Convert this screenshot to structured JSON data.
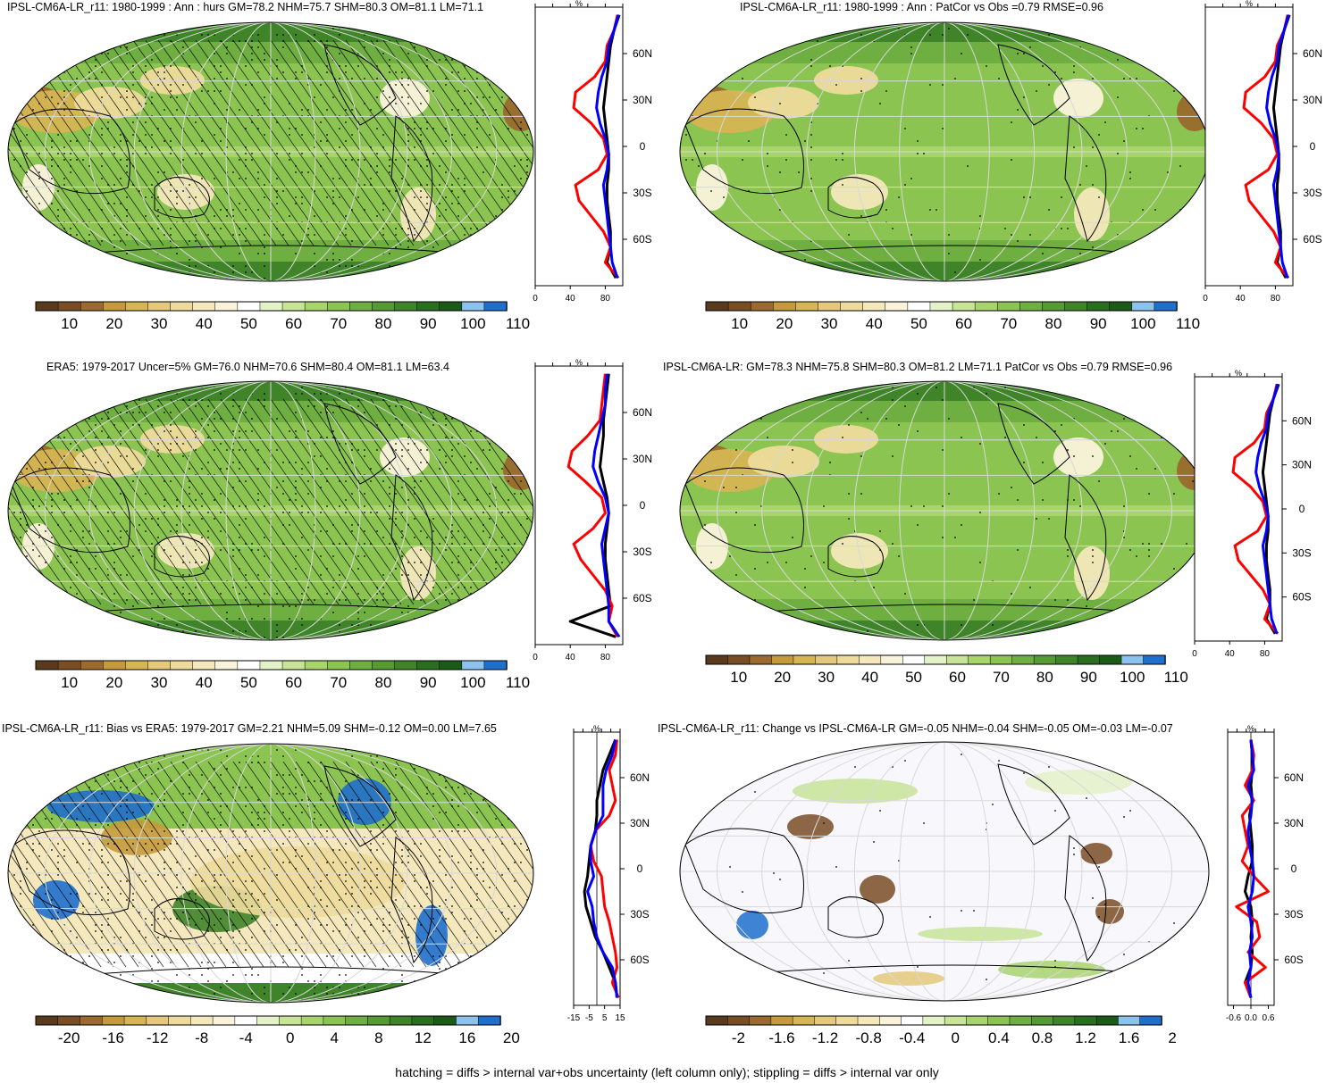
{
  "footer": "hatching = diffs > internal var+obs uncertainty (left column only); stippling = diffs > internal var only",
  "colors": {
    "brown_to_green": [
      "#5a3a1c",
      "#7a4e24",
      "#9a6a2e",
      "#c49a3c",
      "#d6b554",
      "#e4c97a",
      "#eedb9c",
      "#f4e8bc",
      "#faf3dc",
      "#ffffff",
      "#e4f2c8",
      "#c8e496",
      "#a8d46c",
      "#8cc452",
      "#6fae40",
      "#569a34",
      "#3f8428",
      "#2a6e20",
      "#1c5a18",
      "#8cc2ee",
      "#1f6fcc"
    ],
    "zonal_model": "#000000",
    "zonal_land": "#ff0000",
    "zonal_ocean": "#0000ff",
    "graticule": "#d8d8d8",
    "coast": "#000000"
  },
  "charts": [
    {
      "id": "p1",
      "title": "IPSL-CM6A-LR_r11: 1980-1999 : Ann : hurs GM=78.2 NHM=75.7 SHM=80.3 OM=81.1 LM=71.1",
      "kind": "abs",
      "hatching": true,
      "zonal_unit": "%",
      "zonal_xticks": [
        "0",
        "40",
        "80"
      ],
      "zonal_xlim": [
        0,
        100
      ],
      "lat_ticks": [
        "60N",
        "30N",
        "0",
        "30S",
        "60S"
      ],
      "colorbar_labels": [
        "10",
        "20",
        "30",
        "40",
        "50",
        "60",
        "70",
        "80",
        "90",
        "100",
        "110"
      ]
    },
    {
      "id": "p2",
      "title": "IPSL-CM6A-LR_r11: 1980-1999 : Ann : PatCor vs Obs =0.79 RMSE=0.96",
      "kind": "abs",
      "hatching": false,
      "zonal_unit": "%",
      "zonal_xticks": [
        "0",
        "40",
        "80"
      ],
      "zonal_xlim": [
        0,
        100
      ],
      "lat_ticks": [
        "60N",
        "30N",
        "0",
        "30S",
        "60S"
      ],
      "colorbar_labels": [
        "10",
        "20",
        "30",
        "40",
        "50",
        "60",
        "70",
        "80",
        "90",
        "100",
        "110"
      ]
    },
    {
      "id": "p3",
      "title": "ERA5: 1979-2017 Uncer=5% GM=76.0 NHM=70.6 SHM=80.4 OM=81.1 LM=63.4",
      "kind": "abs",
      "hatching": true,
      "zonal_unit": "%",
      "zonal_xticks": [
        "0",
        "40",
        "80"
      ],
      "zonal_xlim": [
        0,
        100
      ],
      "lat_ticks": [
        "60N",
        "30N",
        "0",
        "30S",
        "60S"
      ],
      "colorbar_labels": [
        "10",
        "20",
        "30",
        "40",
        "50",
        "60",
        "70",
        "80",
        "90",
        "100",
        "110"
      ]
    },
    {
      "id": "p4",
      "title": "IPSL-CM6A-LR: GM=78.3 NHM=75.8 SHM=80.3 OM=81.2 LM=71.1 PatCor vs Obs =0.79 RMSE=0.96",
      "kind": "abs",
      "hatching": false,
      "zonal_unit": "%",
      "zonal_xticks": [
        "0",
        "40",
        "80"
      ],
      "zonal_xlim": [
        0,
        100
      ],
      "lat_ticks": [
        "60N",
        "30N",
        "0",
        "30S",
        "60S"
      ],
      "colorbar_labels": [
        "10",
        "20",
        "30",
        "40",
        "50",
        "60",
        "70",
        "80",
        "90",
        "100",
        "110"
      ]
    },
    {
      "id": "p5",
      "title": "IPSL-CM6A-LR_r11: Bias vs ERA5: 1979-2017 GM=2.21 NHM=5.09 SHM=-0.12 OM=0.00 LM=7.65",
      "kind": "bias",
      "hatching": true,
      "zonal_unit": "%",
      "zonal_xticks": [
        "-15",
        "-5",
        "5",
        "15"
      ],
      "zonal_xlim": [
        -15,
        15
      ],
      "lat_ticks": [
        "60N",
        "30N",
        "0",
        "30S",
        "60S"
      ],
      "colorbar_labels": [
        "-20",
        "-16",
        "-12",
        "-8",
        "-4",
        "0",
        "4",
        "8",
        "12",
        "16",
        "20"
      ]
    },
    {
      "id": "p6",
      "title": "IPSL-CM6A-LR_r11: Change vs IPSL-CM6A-LR GM=-0.05 NHM=-0.04 SHM=-0.05 OM=-0.03 LM=-0.07",
      "kind": "change",
      "hatching": false,
      "zonal_unit": "%",
      "zonal_xticks": [
        "-0.6",
        "0.0",
        "0.6"
      ],
      "zonal_xlim": [
        -0.8,
        0.8
      ],
      "lat_ticks": [
        "60N",
        "30N",
        "0",
        "30S",
        "60S"
      ],
      "colorbar_labels": [
        "-2",
        "-1.6",
        "-1.2",
        "-0.8",
        "-0.4",
        "0",
        "0.4",
        "0.8",
        "1.2",
        "1.6",
        "2"
      ]
    }
  ],
  "chart_data": [
    {
      "type": "line",
      "panel": "p1",
      "y_lat": [
        85,
        75,
        65,
        55,
        45,
        35,
        25,
        15,
        5,
        -5,
        -15,
        -25,
        -35,
        -45,
        -55,
        -65,
        -75,
        -85
      ],
      "series": [
        {
          "values": [
            95,
            90,
            84,
            82,
            76,
            72,
            70,
            74,
            80,
            84,
            82,
            78,
            80,
            82,
            84,
            86,
            88,
            94
          ]
        },
        {
          "values": [
            94,
            90,
            82,
            80,
            68,
            46,
            44,
            64,
            78,
            82,
            72,
            46,
            50,
            64,
            78,
            86,
            80,
            95
          ]
        },
        {
          "values": [
            96,
            90,
            86,
            84,
            82,
            80,
            78,
            80,
            82,
            84,
            84,
            82,
            82,
            84,
            86,
            86,
            82,
            92
          ]
        }
      ]
    },
    {
      "type": "line",
      "panel": "p2",
      "y_lat": [
        85,
        75,
        65,
        55,
        45,
        35,
        25,
        15,
        5,
        -5,
        -15,
        -25,
        -35,
        -45,
        -55,
        -65,
        -75,
        -85
      ],
      "series": [
        {
          "values": [
            95,
            90,
            84,
            82,
            76,
            72,
            70,
            74,
            80,
            84,
            82,
            78,
            80,
            82,
            84,
            86,
            88,
            94
          ]
        },
        {
          "values": [
            94,
            90,
            82,
            80,
            68,
            46,
            44,
            64,
            78,
            82,
            72,
            46,
            50,
            64,
            78,
            86,
            80,
            95
          ]
        },
        {
          "values": [
            96,
            90,
            86,
            84,
            82,
            80,
            78,
            80,
            82,
            84,
            84,
            82,
            82,
            84,
            86,
            86,
            82,
            92
          ]
        }
      ]
    },
    {
      "type": "line",
      "panel": "p3",
      "y_lat": [
        85,
        75,
        65,
        55,
        45,
        35,
        25,
        15,
        5,
        -5,
        -15,
        -25,
        -35,
        -45,
        -55,
        -65,
        -75,
        -85
      ],
      "series": [
        {
          "values": [
            82,
            80,
            80,
            76,
            72,
            68,
            66,
            72,
            80,
            84,
            80,
            76,
            78,
            80,
            82,
            84,
            84,
            96
          ]
        },
        {
          "values": [
            80,
            78,
            76,
            74,
            60,
            42,
            38,
            58,
            76,
            80,
            66,
            44,
            52,
            66,
            80,
            88,
            84,
            94
          ]
        },
        {
          "values": [
            84,
            82,
            80,
            78,
            78,
            76,
            74,
            78,
            82,
            84,
            82,
            80,
            80,
            82,
            84,
            86,
            40,
            92
          ]
        }
      ]
    },
    {
      "type": "line",
      "panel": "p4",
      "y_lat": [
        85,
        75,
        65,
        55,
        45,
        35,
        25,
        15,
        5,
        -5,
        -15,
        -25,
        -35,
        -45,
        -55,
        -65,
        -75,
        -85
      ],
      "series": [
        {
          "values": [
            95,
            90,
            84,
            82,
            76,
            72,
            70,
            74,
            80,
            84,
            82,
            78,
            80,
            82,
            84,
            86,
            88,
            94
          ]
        },
        {
          "values": [
            94,
            90,
            82,
            80,
            68,
            46,
            44,
            64,
            78,
            82,
            72,
            46,
            50,
            64,
            78,
            86,
            80,
            95
          ]
        },
        {
          "values": [
            96,
            90,
            86,
            84,
            82,
            80,
            78,
            80,
            82,
            84,
            84,
            82,
            82,
            84,
            86,
            86,
            82,
            92
          ]
        }
      ]
    },
    {
      "type": "line",
      "panel": "p5",
      "y_lat": [
        85,
        75,
        65,
        55,
        45,
        35,
        25,
        15,
        5,
        -5,
        -15,
        -25,
        -35,
        -45,
        -55,
        -65,
        -75,
        -85
      ],
      "series": [
        {
          "values": [
            12,
            10,
            6,
            4,
            4,
            4,
            -1,
            -4,
            -4,
            -2,
            -6,
            -3,
            -2,
            0,
            4,
            10,
            12,
            13
          ]
        },
        {
          "values": [
            13,
            12,
            8,
            10,
            12,
            8,
            -1,
            -4,
            -2,
            3,
            4,
            5,
            8,
            10,
            12,
            13,
            10,
            14
          ]
        },
        {
          "values": [
            12,
            8,
            4,
            2,
            0,
            0,
            -1,
            -4,
            -5,
            -6,
            -8,
            -7,
            -4,
            -1,
            4,
            8,
            12,
            13
          ]
        }
      ]
    },
    {
      "type": "line",
      "panel": "p6",
      "y_lat": [
        85,
        75,
        65,
        55,
        45,
        35,
        25,
        15,
        5,
        -5,
        -15,
        -25,
        -35,
        -45,
        -55,
        -65,
        -75,
        -85
      ],
      "series": [
        {
          "values": [
            0.0,
            0.05,
            0.1,
            -0.1,
            0.05,
            0.0,
            -0.1,
            -0.05,
            0.05,
            0.1,
            0.05,
            -0.1,
            0.0,
            0.05,
            -0.05,
            0.0,
            -0.1,
            0.0
          ]
        },
        {
          "values": [
            0.0,
            0.1,
            0.05,
            -0.2,
            0.1,
            -0.3,
            -0.2,
            -0.1,
            -0.3,
            0.1,
            0.6,
            -0.5,
            0.2,
            0.3,
            -0.1,
            0.5,
            -0.2,
            0.0
          ]
        },
        {
          "values": [
            0.0,
            0.05,
            0.05,
            0.0,
            0.05,
            -0.05,
            0.0,
            0.05,
            0.05,
            -0.1,
            -0.2,
            0.0,
            0.05,
            0.0,
            0.05,
            0.0,
            -0.2,
            0.0
          ]
        }
      ]
    }
  ]
}
